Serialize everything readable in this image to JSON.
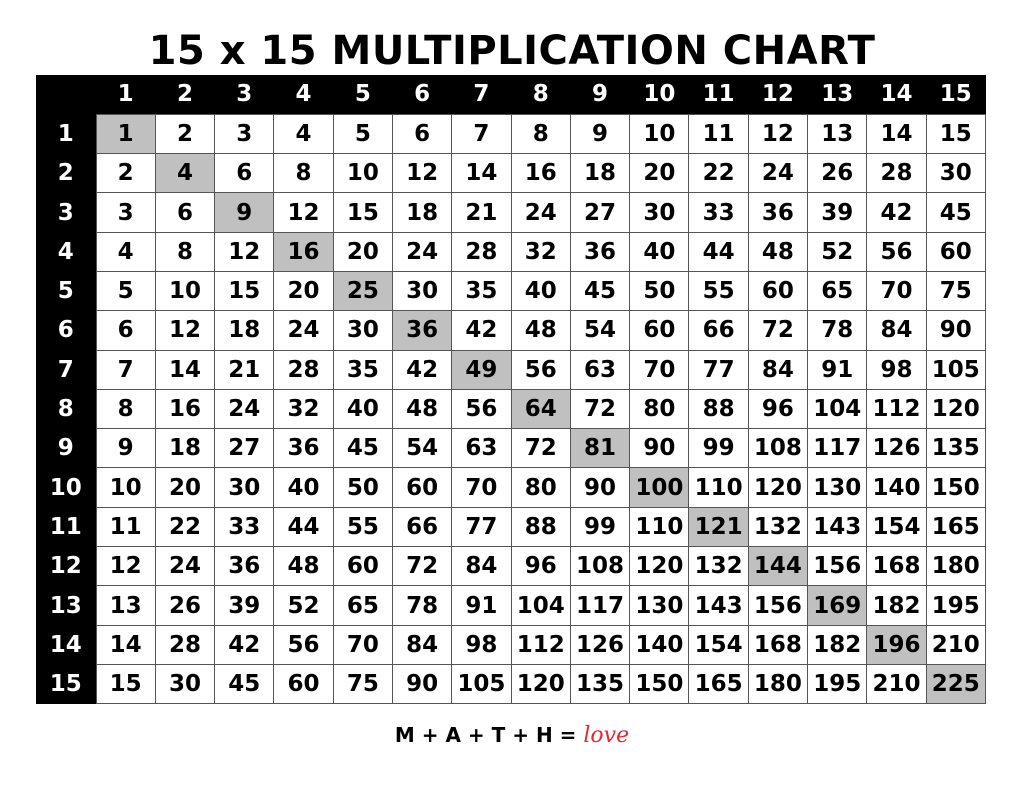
{
  "footer": {
    "text": "M + A + T + H =",
    "love": "love"
  },
  "chart_data": {
    "type": "table",
    "title": "15 x 15 MULTIPLICATION CHART",
    "column_headers": [
      "1",
      "2",
      "3",
      "4",
      "5",
      "6",
      "7",
      "8",
      "9",
      "10",
      "11",
      "12",
      "13",
      "14",
      "15"
    ],
    "row_headers": [
      "1",
      "2",
      "3",
      "4",
      "5",
      "6",
      "7",
      "8",
      "9",
      "10",
      "11",
      "12",
      "13",
      "14",
      "15"
    ],
    "highlight": "diagonal (squares)",
    "colors": {
      "header_bg": "#000000",
      "header_text": "#ffffff",
      "highlight": "#c0c0c0",
      "cell_bg": "#ffffff"
    },
    "rows": [
      [
        1,
        2,
        3,
        4,
        5,
        6,
        7,
        8,
        9,
        10,
        11,
        12,
        13,
        14,
        15
      ],
      [
        2,
        4,
        6,
        8,
        10,
        12,
        14,
        16,
        18,
        20,
        22,
        24,
        26,
        28,
        30
      ],
      [
        3,
        6,
        9,
        12,
        15,
        18,
        21,
        24,
        27,
        30,
        33,
        36,
        39,
        42,
        45
      ],
      [
        4,
        8,
        12,
        16,
        20,
        24,
        28,
        32,
        36,
        40,
        44,
        48,
        52,
        56,
        60
      ],
      [
        5,
        10,
        15,
        20,
        25,
        30,
        35,
        40,
        45,
        50,
        55,
        60,
        65,
        70,
        75
      ],
      [
        6,
        12,
        18,
        24,
        30,
        36,
        42,
        48,
        54,
        60,
        66,
        72,
        78,
        84,
        90
      ],
      [
        7,
        14,
        21,
        28,
        35,
        42,
        49,
        56,
        63,
        70,
        77,
        84,
        91,
        98,
        105
      ],
      [
        8,
        16,
        24,
        32,
        40,
        48,
        56,
        64,
        72,
        80,
        88,
        96,
        104,
        112,
        120
      ],
      [
        9,
        18,
        27,
        36,
        45,
        54,
        63,
        72,
        81,
        90,
        99,
        108,
        117,
        126,
        135
      ],
      [
        10,
        20,
        30,
        40,
        50,
        60,
        70,
        80,
        90,
        100,
        110,
        120,
        130,
        140,
        150
      ],
      [
        11,
        22,
        33,
        44,
        55,
        66,
        77,
        88,
        99,
        110,
        121,
        132,
        143,
        154,
        165
      ],
      [
        12,
        24,
        36,
        48,
        60,
        72,
        84,
        96,
        108,
        120,
        132,
        144,
        156,
        168,
        180
      ],
      [
        13,
        26,
        39,
        52,
        65,
        78,
        91,
        104,
        117,
        130,
        143,
        156,
        169,
        182,
        195
      ],
      [
        14,
        28,
        42,
        56,
        70,
        84,
        98,
        112,
        126,
        140,
        154,
        168,
        182,
        196,
        210
      ],
      [
        15,
        30,
        45,
        60,
        75,
        90,
        105,
        120,
        135,
        150,
        165,
        180,
        195,
        210,
        225
      ]
    ]
  }
}
